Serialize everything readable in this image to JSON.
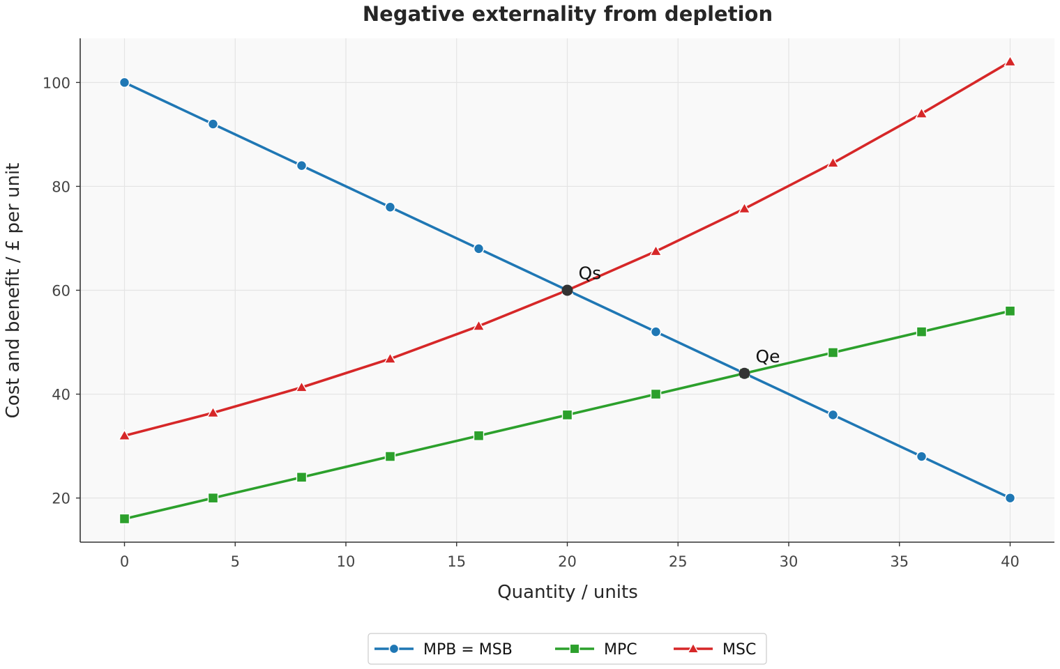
{
  "chart_data": {
    "type": "line",
    "title": "Negative externality from depletion",
    "xlabel": "Quantity / units",
    "ylabel": "Cost and benefit / £ per unit",
    "xlim": [
      -2,
      42
    ],
    "ylim": [
      11.5,
      108.5
    ],
    "xticks": [
      0,
      5,
      10,
      15,
      20,
      25,
      30,
      35,
      40
    ],
    "yticks": [
      20,
      40,
      60,
      80,
      100
    ],
    "grid": true,
    "legend_position": "bottom-center",
    "x": [
      0,
      4,
      8,
      12,
      16,
      20,
      24,
      28,
      32,
      36,
      40
    ],
    "series": [
      {
        "name": "MPB = MSB",
        "color": "#1f77b4",
        "marker": "circle",
        "values": [
          100,
          92,
          84,
          76,
          68,
          60,
          52,
          44,
          36,
          28,
          20
        ]
      },
      {
        "name": "MPC",
        "color": "#2ca02c",
        "marker": "square",
        "values": [
          16,
          20,
          24,
          28,
          32,
          36,
          40,
          44,
          48,
          52,
          56
        ]
      },
      {
        "name": "MSC",
        "color": "#d62728",
        "marker": "triangle",
        "values": [
          32,
          36.4,
          41.3,
          46.8,
          53.1,
          60,
          67.5,
          75.7,
          84.5,
          94,
          104
        ]
      }
    ],
    "annotations": [
      {
        "label": "Qs",
        "x": 20,
        "y": 60
      },
      {
        "label": "Qe",
        "x": 28,
        "y": 44
      }
    ]
  }
}
